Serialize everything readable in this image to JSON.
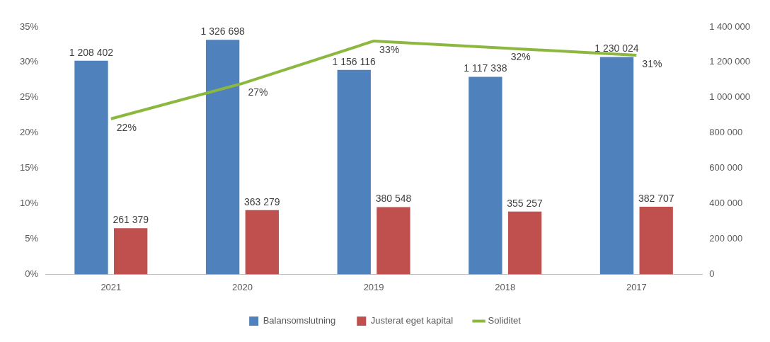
{
  "chart_data": {
    "type": "bar",
    "categories": [
      "2021",
      "2020",
      "2019",
      "2018",
      "2017"
    ],
    "series": [
      {
        "name": "Balansomslutning",
        "axis": "y2",
        "color": "#4f81bd",
        "values": [
          1208402,
          1326698,
          1156116,
          1117338,
          1230024
        ],
        "value_labels": [
          "1 208 402",
          "1 326 698",
          "1 156 116",
          "1 117 338",
          "1 230 024"
        ]
      },
      {
        "name": "Justerat eget kapital",
        "axis": "y2",
        "color": "#c0504d",
        "values": [
          261379,
          363279,
          380548,
          355257,
          382707
        ],
        "value_labels": [
          "261 379",
          "363 279",
          "380 548",
          "355 257",
          "382 707"
        ]
      },
      {
        "name": "Soliditet",
        "type": "line",
        "color": "#8db83f",
        "values": [
          22,
          27,
          33,
          32,
          31
        ],
        "value_labels": [
          "22%",
          "27%",
          "33%",
          "32%",
          "31%"
        ]
      }
    ],
    "ylim": [
      0,
      35
    ],
    "yticks": [
      {
        "value": 0,
        "label": "0%"
      },
      {
        "value": 5,
        "label": "5%"
      },
      {
        "value": 10,
        "label": "10%"
      },
      {
        "value": 15,
        "label": "15%"
      },
      {
        "value": 20,
        "label": "20%"
      },
      {
        "value": 25,
        "label": "25%"
      },
      {
        "value": 30,
        "label": "30%"
      },
      {
        "value": 35,
        "label": "35%"
      }
    ],
    "y2lim": [
      0,
      1400000
    ],
    "y2ticks": [
      0,
      {
        "value": 200000,
        "label": "200 000"
      },
      {
        "value": 400000,
        "label": "400 000"
      },
      {
        "value": 600000,
        "label": "600 000"
      },
      {
        "value": 800000,
        "label": "800 000"
      },
      {
        "value": 1000000,
        "label": "1 000 000"
      },
      {
        "value": 1200000,
        "label": "1 200 000"
      },
      {
        "value": 1400000,
        "label": "1 400 000"
      }
    ],
    "legend": "bottom",
    "marker": "none"
  }
}
